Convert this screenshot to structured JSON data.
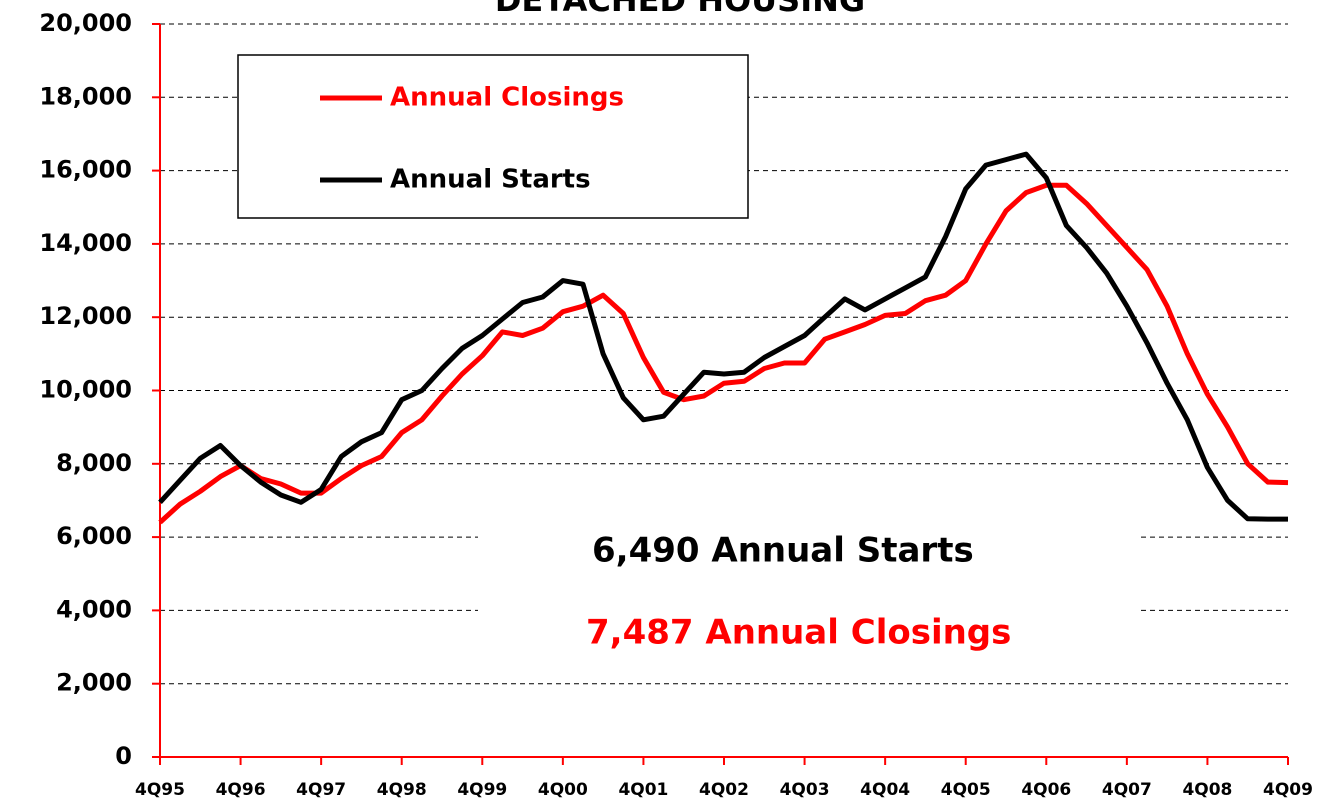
{
  "chart_data": {
    "type": "line",
    "title": "DETACHED HOUSING",
    "categories": [
      "4Q95",
      null,
      null,
      null,
      "4Q96",
      null,
      null,
      null,
      "4Q97",
      null,
      null,
      null,
      "4Q98",
      null,
      null,
      null,
      "4Q99",
      null,
      null,
      null,
      "4Q00",
      null,
      null,
      null,
      "4Q01",
      null,
      null,
      null,
      "4Q02",
      null,
      null,
      null,
      "4Q03",
      null,
      null,
      null,
      "4Q04",
      null,
      null,
      null,
      "4Q05",
      null,
      null,
      null,
      "4Q06",
      null,
      null,
      null,
      "4Q07",
      null,
      null,
      null,
      "4Q08",
      null,
      null,
      null,
      "4Q09"
    ],
    "series": [
      {
        "name": "Annual Closings",
        "color": "#ff0000",
        "values": [
          6400,
          6900,
          7250,
          7650,
          7950,
          7600,
          7450,
          7200,
          7200,
          7600,
          7950,
          8200,
          8850,
          9200,
          9850,
          10450,
          10950,
          11600,
          11500,
          11700,
          12150,
          12300,
          12600,
          12100,
          10900,
          9950,
          9750,
          9850,
          10200,
          10250,
          10600,
          10750,
          10750,
          11400,
          11600,
          11800,
          12050,
          12100,
          12450,
          12600,
          13000,
          14000,
          14900,
          15400,
          15600,
          15600,
          15100,
          14500,
          13900,
          13300,
          12300,
          11000,
          9900,
          9000,
          8000,
          7500,
          7487
        ]
      },
      {
        "name": "Annual Starts",
        "color": "#000000",
        "values": [
          6950,
          7550,
          8150,
          8500,
          7950,
          7500,
          7150,
          6950,
          7300,
          8200,
          8600,
          8850,
          9750,
          10000,
          10600,
          11150,
          11500,
          11950,
          12400,
          12550,
          13000,
          12900,
          11000,
          9800,
          9200,
          9300,
          9900,
          10500,
          10450,
          10500,
          10900,
          11200,
          11500,
          12000,
          12500,
          12200,
          12500,
          12800,
          13100,
          14200,
          15500,
          16150,
          16300,
          16450,
          15800,
          14500,
          13900,
          13200,
          12300,
          11300,
          10200,
          9200,
          7900,
          7000,
          6500,
          6490,
          6490
        ]
      }
    ],
    "ylim": [
      0,
      20000
    ],
    "yticks": [
      0,
      {
        "value": 2000,
        "label": "2,000"
      },
      {
        "value": 4000,
        "label": "4,000"
      },
      {
        "value": 6000,
        "label": "6,000"
      },
      {
        "value": 8000,
        "label": "8,000"
      },
      {
        "value": 10000,
        "label": "10,000"
      },
      {
        "value": 12000,
        "label": "12,000"
      },
      {
        "value": 14000,
        "label": "14,000"
      },
      {
        "value": 16000,
        "label": "16,000"
      },
      {
        "value": 18000,
        "label": "18,000"
      },
      {
        "value": 20000,
        "label": "20,000"
      }
    ],
    "grid": true,
    "legend": "top-left",
    "annotations": [
      {
        "text": "6,490 Annual Starts",
        "color": "#000000"
      },
      {
        "text": "7,487 Annual Closings",
        "color": "#ff0000"
      }
    ]
  }
}
